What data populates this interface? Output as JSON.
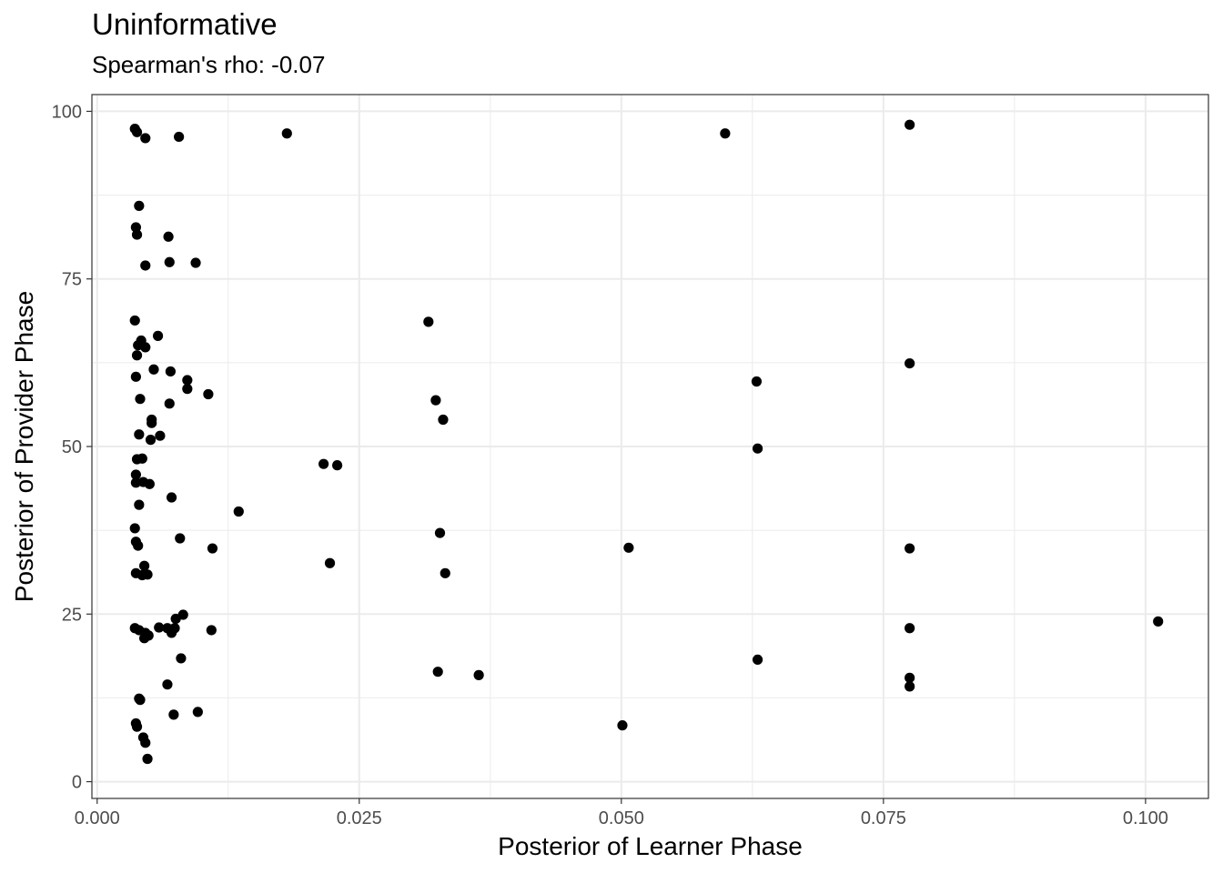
{
  "chart_data": {
    "type": "scatter",
    "title": "Uninformative",
    "subtitle": "Spearman's rho: -0.07",
    "xlabel": "Posterior of Learner Phase",
    "ylabel": "Posterior of Provider Phase",
    "xlim": [
      -0.0005,
      0.106
    ],
    "ylim": [
      -2.5,
      102.5
    ],
    "x_ticks": [
      0.0,
      0.025,
      0.05,
      0.075,
      0.1
    ],
    "x_tick_labels": [
      "0.000",
      "0.025",
      "0.050",
      "0.075",
      "0.100"
    ],
    "y_ticks": [
      0,
      25,
      50,
      75,
      100
    ],
    "y_tick_labels": [
      "0",
      "25",
      "50",
      "75",
      "100"
    ],
    "grid": true,
    "point_color": "#000000",
    "points": [
      [
        0.0036,
        97.4
      ],
      [
        0.0038,
        96.9
      ],
      [
        0.0046,
        96.0
      ],
      [
        0.0078,
        96.2
      ],
      [
        0.0181,
        96.7
      ],
      [
        0.0599,
        96.7
      ],
      [
        0.0775,
        98.0
      ],
      [
        0.004,
        85.9
      ],
      [
        0.0037,
        82.7
      ],
      [
        0.0038,
        81.6
      ],
      [
        0.0068,
        81.3
      ],
      [
        0.0046,
        77.0
      ],
      [
        0.0069,
        77.5
      ],
      [
        0.0094,
        77.4
      ],
      [
        0.0036,
        68.8
      ],
      [
        0.0316,
        68.6
      ],
      [
        0.0058,
        66.5
      ],
      [
        0.0042,
        65.8
      ],
      [
        0.0039,
        65.1
      ],
      [
        0.0046,
        64.8
      ],
      [
        0.0038,
        63.6
      ],
      [
        0.0775,
        62.4
      ],
      [
        0.0054,
        61.5
      ],
      [
        0.007,
        61.2
      ],
      [
        0.0037,
        60.4
      ],
      [
        0.0086,
        59.9
      ],
      [
        0.0629,
        59.7
      ],
      [
        0.0086,
        58.6
      ],
      [
        0.0106,
        57.8
      ],
      [
        0.0041,
        57.1
      ],
      [
        0.0323,
        56.9
      ],
      [
        0.0069,
        56.4
      ],
      [
        0.0052,
        54.0
      ],
      [
        0.0052,
        53.5
      ],
      [
        0.033,
        54.0
      ],
      [
        0.004,
        51.8
      ],
      [
        0.006,
        51.6
      ],
      [
        0.0051,
        51.0
      ],
      [
        0.063,
        49.7
      ],
      [
        0.0038,
        48.1
      ],
      [
        0.0043,
        48.2
      ],
      [
        0.0216,
        47.4
      ],
      [
        0.0229,
        47.2
      ],
      [
        0.0037,
        45.8
      ],
      [
        0.0037,
        44.6
      ],
      [
        0.0044,
        44.7
      ],
      [
        0.005,
        44.4
      ],
      [
        0.0071,
        42.4
      ],
      [
        0.004,
        41.3
      ],
      [
        0.0135,
        40.3
      ],
      [
        0.0036,
        37.8
      ],
      [
        0.0327,
        37.1
      ],
      [
        0.0079,
        36.3
      ],
      [
        0.0037,
        35.8
      ],
      [
        0.0039,
        35.2
      ],
      [
        0.011,
        34.8
      ],
      [
        0.0507,
        34.9
      ],
      [
        0.0775,
        34.8
      ],
      [
        0.0222,
        32.6
      ],
      [
        0.0045,
        32.2
      ],
      [
        0.0037,
        31.1
      ],
      [
        0.0043,
        30.8
      ],
      [
        0.0048,
        30.9
      ],
      [
        0.0332,
        31.1
      ],
      [
        0.0082,
        24.9
      ],
      [
        0.0075,
        24.3
      ],
      [
        0.1012,
        23.9
      ],
      [
        0.0036,
        22.9
      ],
      [
        0.004,
        22.6
      ],
      [
        0.0059,
        23.0
      ],
      [
        0.0067,
        22.9
      ],
      [
        0.0074,
        22.9
      ],
      [
        0.0109,
        22.6
      ],
      [
        0.0775,
        22.9
      ],
      [
        0.0046,
        22.2
      ],
      [
        0.0049,
        21.8
      ],
      [
        0.0071,
        22.2
      ],
      [
        0.0045,
        21.4
      ],
      [
        0.008,
        18.4
      ],
      [
        0.063,
        18.2
      ],
      [
        0.0325,
        16.4
      ],
      [
        0.0364,
        15.9
      ],
      [
        0.0775,
        15.5
      ],
      [
        0.0775,
        14.2
      ],
      [
        0.0067,
        14.5
      ],
      [
        0.004,
        12.4
      ],
      [
        0.0041,
        12.2
      ],
      [
        0.0096,
        10.4
      ],
      [
        0.0073,
        10.0
      ],
      [
        0.0037,
        8.7
      ],
      [
        0.0038,
        8.2
      ],
      [
        0.0501,
        8.4
      ],
      [
        0.0044,
        6.6
      ],
      [
        0.0046,
        5.8
      ],
      [
        0.0048,
        3.4
      ]
    ]
  }
}
